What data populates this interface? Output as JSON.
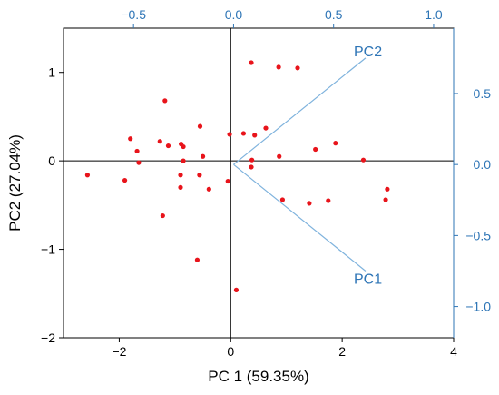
{
  "chart_data": {
    "type": "scatter",
    "title": "",
    "xlabel": "PC 1 (59.35%)",
    "ylabel": "PC2 (27.04%)",
    "xlim": [
      -3,
      4
    ],
    "ylim": [
      -2,
      1.5
    ],
    "x_ticks": [
      -2,
      0,
      2,
      4
    ],
    "x_tick_labels": [
      "−2",
      "0",
      "2",
      "4"
    ],
    "y_ticks": [
      -2,
      -1,
      0,
      1
    ],
    "y_tick_labels": [
      "−2",
      "−1",
      "0",
      "1"
    ],
    "loading_axis": {
      "xlim": [
        -0.85,
        1.1
      ],
      "ylim": [
        -1.22,
        0.96
      ],
      "x_ticks": [
        -0.5,
        0.0,
        0.5,
        1.0
      ],
      "x_tick_labels": [
        "−0.5",
        "0.0",
        "0.5",
        "1.0"
      ],
      "y_ticks": [
        0.5,
        0.0,
        -0.5,
        -1.0
      ],
      "y_tick_labels": [
        "0.5",
        "0.0",
        "−0.5",
        "−1.0"
      ]
    },
    "grid": false,
    "series": [
      {
        "points": [
          [
            -2.57,
            -0.16
          ],
          [
            -1.9,
            -0.22
          ],
          [
            -1.8,
            0.25
          ],
          [
            -1.68,
            0.11
          ],
          [
            -1.65,
            -0.02
          ],
          [
            -1.27,
            0.22
          ],
          [
            -1.22,
            -0.62
          ],
          [
            -1.18,
            0.68
          ],
          [
            -1.12,
            0.17
          ],
          [
            -0.9,
            -0.3
          ],
          [
            -0.9,
            -0.16
          ],
          [
            -0.89,
            0.19
          ],
          [
            -0.85,
            0.0
          ],
          [
            -0.85,
            0.16
          ],
          [
            -0.6,
            -1.12
          ],
          [
            -0.55,
            0.39
          ],
          [
            -0.56,
            -0.16
          ],
          [
            -0.5,
            0.05
          ],
          [
            -0.39,
            -0.32
          ],
          [
            -0.05,
            -0.23
          ],
          [
            -0.02,
            0.3
          ],
          [
            0.1,
            -1.46
          ],
          [
            0.23,
            0.31
          ],
          [
            0.37,
            1.11
          ],
          [
            0.37,
            -0.07
          ],
          [
            0.38,
            0.01
          ],
          [
            0.43,
            0.29
          ],
          [
            0.63,
            0.37
          ],
          [
            0.86,
            1.06
          ],
          [
            0.87,
            0.05
          ],
          [
            0.93,
            -0.44
          ],
          [
            1.2,
            1.05
          ],
          [
            1.41,
            -0.48
          ],
          [
            1.52,
            0.13
          ],
          [
            1.75,
            -0.45
          ],
          [
            1.88,
            0.2
          ],
          [
            2.38,
            0.01
          ],
          [
            2.78,
            -0.44
          ],
          [
            2.81,
            -0.32
          ]
        ]
      }
    ],
    "loadings": [
      {
        "label": "PC2",
        "x": 0.66,
        "y": 0.75
      },
      {
        "label": "PC1",
        "x": 0.66,
        "y": -0.75
      }
    ],
    "colors": {
      "points": "#e8141b",
      "secondary_axis": "#2e75b6",
      "vectors": "#7fb3dd",
      "axis": "#000000"
    }
  }
}
